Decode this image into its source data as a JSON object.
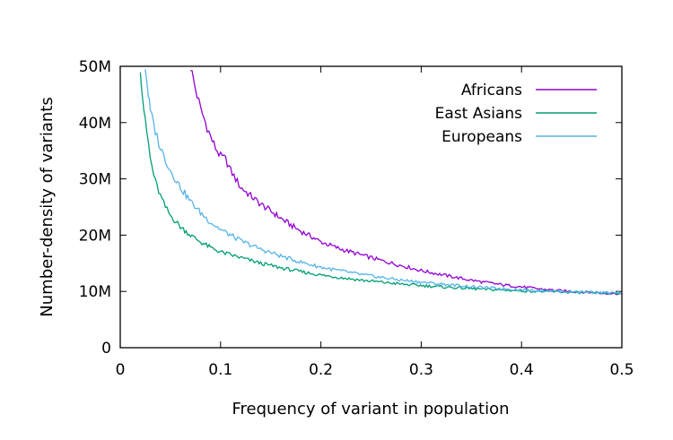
{
  "chart_data": {
    "type": "line",
    "title": "",
    "xlabel": "Frequency of variant in population",
    "ylabel": "Number-density of variants",
    "xlim": [
      0,
      0.5
    ],
    "ylim": [
      0,
      50000000
    ],
    "x_ticks": [
      {
        "value": 0,
        "label": "0"
      },
      {
        "value": 0.1,
        "label": "0.1"
      },
      {
        "value": 0.2,
        "label": "0.2"
      },
      {
        "value": 0.3,
        "label": "0.3"
      },
      {
        "value": 0.4,
        "label": "0.4"
      },
      {
        "value": 0.5,
        "label": "0.5"
      }
    ],
    "y_ticks": [
      {
        "value": 0,
        "label": "0"
      },
      {
        "value": 10000000,
        "label": "10M"
      },
      {
        "value": 20000000,
        "label": "20M"
      },
      {
        "value": 30000000,
        "label": "30M"
      },
      {
        "value": 40000000,
        "label": "40M"
      },
      {
        "value": 50000000,
        "label": "50M"
      }
    ],
    "grid": false,
    "legend_position": "top-right",
    "series": [
      {
        "name": "Africans",
        "color": "#9400d3",
        "points": [
          [
            0.07,
            50000000
          ],
          [
            0.075,
            46000000
          ],
          [
            0.08,
            42500000
          ],
          [
            0.085,
            40000000
          ],
          [
            0.09,
            37500000
          ],
          [
            0.095,
            35500000
          ],
          [
            0.1,
            34000000
          ],
          [
            0.105,
            33500000
          ],
          [
            0.11,
            31500000
          ],
          [
            0.115,
            30000000
          ],
          [
            0.12,
            28500000
          ],
          [
            0.13,
            27000000
          ],
          [
            0.14,
            25500000
          ],
          [
            0.15,
            24300000
          ],
          [
            0.16,
            23000000
          ],
          [
            0.17,
            21800000
          ],
          [
            0.18,
            20700000
          ],
          [
            0.19,
            19800000
          ],
          [
            0.2,
            18800000
          ],
          [
            0.22,
            17500000
          ],
          [
            0.24,
            16500000
          ],
          [
            0.26,
            15500000
          ],
          [
            0.28,
            14600000
          ],
          [
            0.3,
            13700000
          ],
          [
            0.32,
            13000000
          ],
          [
            0.34,
            12300000
          ],
          [
            0.36,
            11700000
          ],
          [
            0.38,
            11200000
          ],
          [
            0.4,
            10800000
          ],
          [
            0.42,
            10400000
          ],
          [
            0.44,
            10100000
          ],
          [
            0.46,
            9900000
          ],
          [
            0.48,
            9700000
          ],
          [
            0.5,
            9600000
          ]
        ]
      },
      {
        "name": "East Asians",
        "color": "#009e73",
        "points": [
          [
            0.02,
            50000000
          ],
          [
            0.022,
            45000000
          ],
          [
            0.025,
            40000000
          ],
          [
            0.028,
            36500000
          ],
          [
            0.03,
            33500000
          ],
          [
            0.035,
            29500000
          ],
          [
            0.04,
            27000000
          ],
          [
            0.045,
            25000000
          ],
          [
            0.05,
            23500000
          ],
          [
            0.06,
            21500000
          ],
          [
            0.07,
            20000000
          ],
          [
            0.08,
            18800000
          ],
          [
            0.09,
            17800000
          ],
          [
            0.1,
            17000000
          ],
          [
            0.12,
            16000000
          ],
          [
            0.14,
            15000000
          ],
          [
            0.16,
            14200000
          ],
          [
            0.18,
            13500000
          ],
          [
            0.2,
            12900000
          ],
          [
            0.24,
            12000000
          ],
          [
            0.28,
            11300000
          ],
          [
            0.32,
            10800000
          ],
          [
            0.36,
            10400000
          ],
          [
            0.4,
            10100000
          ],
          [
            0.44,
            9900000
          ],
          [
            0.48,
            9700000
          ],
          [
            0.5,
            9600000
          ]
        ]
      },
      {
        "name": "Europeans",
        "color": "#56b4e9",
        "points": [
          [
            0.025,
            50000000
          ],
          [
            0.028,
            45000000
          ],
          [
            0.03,
            42000000
          ],
          [
            0.035,
            38500000
          ],
          [
            0.04,
            35500000
          ],
          [
            0.045,
            33500000
          ],
          [
            0.05,
            31500000
          ],
          [
            0.06,
            28500000
          ],
          [
            0.07,
            26000000
          ],
          [
            0.08,
            24000000
          ],
          [
            0.09,
            22300000
          ],
          [
            0.1,
            21000000
          ],
          [
            0.12,
            19000000
          ],
          [
            0.14,
            17500000
          ],
          [
            0.16,
            16300000
          ],
          [
            0.18,
            15200000
          ],
          [
            0.2,
            14300000
          ],
          [
            0.24,
            13000000
          ],
          [
            0.28,
            12000000
          ],
          [
            0.32,
            11300000
          ],
          [
            0.36,
            10700000
          ],
          [
            0.4,
            10300000
          ],
          [
            0.44,
            10000000
          ],
          [
            0.48,
            9800000
          ],
          [
            0.5,
            9700000
          ]
        ]
      }
    ]
  }
}
